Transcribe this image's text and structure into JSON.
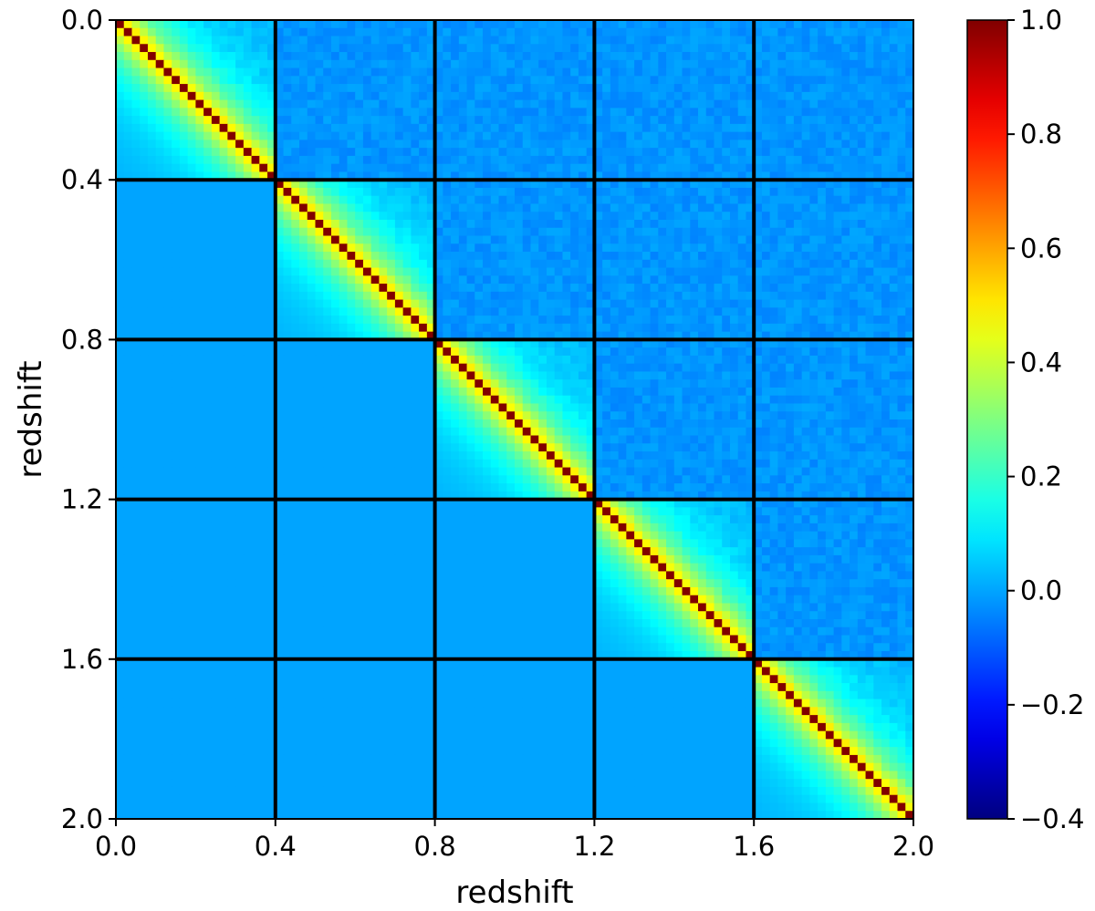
{
  "chart_data": {
    "type": "heatmap",
    "title": "",
    "xlabel": "redshift",
    "ylabel": "redshift",
    "x_range": [
      0.0,
      2.0
    ],
    "y_range": [
      0.0,
      2.0
    ],
    "y_inverted": true,
    "x_ticks": [
      "0.0",
      "0.4",
      "0.8",
      "1.2",
      "1.6",
      "2.0"
    ],
    "y_ticks": [
      "0.0",
      "0.4",
      "0.8",
      "1.2",
      "1.6",
      "2.0"
    ],
    "block_boundaries": [
      0.4,
      0.8,
      1.2,
      1.6
    ],
    "colorbar": {
      "colormap": "jet",
      "range": [
        -0.4,
        1.0
      ],
      "ticks": [
        "1.0",
        "0.8",
        "0.6",
        "0.4",
        "0.2",
        "0.0",
        "−0.2",
        "−0.4"
      ]
    },
    "structure": {
      "diagonal_value": 1.0,
      "near_diagonal_band_in_blocks": "decays from about 0.5 toward 0.05 away from diagonal",
      "upper_off_diagonal_blocks_value": -0.02,
      "lower_off_diagonal_blocks_value": 0.0
    }
  }
}
